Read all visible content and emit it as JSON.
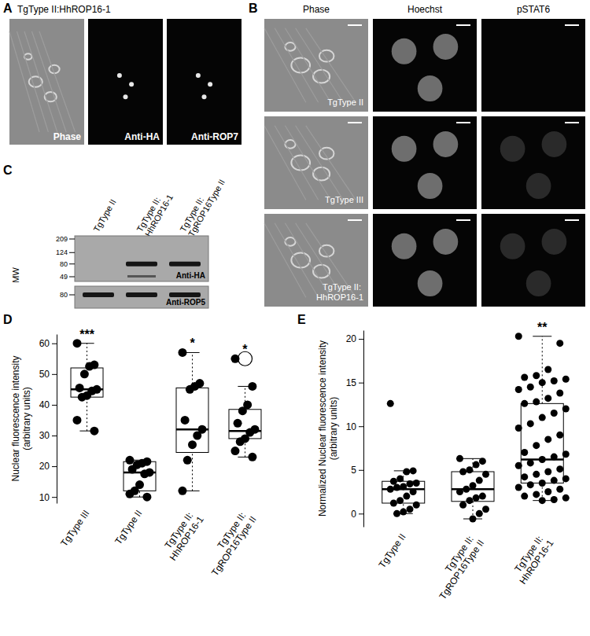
{
  "figure": {
    "A": {
      "label": "A",
      "title": "TgType II:HhROP16-1",
      "images": [
        "Phase",
        "Anti-HA",
        "Anti-ROP7"
      ]
    },
    "B": {
      "label": "B",
      "columns": [
        "Phase",
        "Hoechst",
        "pSTAT6"
      ],
      "rows": [
        "TgType II",
        "TgType III",
        "TgType II: HhROP16-1"
      ]
    },
    "C": {
      "label": "C",
      "lanes": [
        "TgType II",
        "TgType II: HhROP16-1",
        "TgType II: TgROP16Type II"
      ],
      "mw_label": "MW",
      "blots": [
        {
          "name": "Anti-HA",
          "markers": [
            209,
            124,
            80,
            49
          ]
        },
        {
          "name": "Anti-ROP5",
          "markers": [
            80
          ]
        }
      ]
    }
  },
  "chart_data": [
    {
      "type": "box",
      "title": "D",
      "ylabel": [
        "Nuclear fluorescence intensity",
        "(arbitrary units)"
      ],
      "categories": [
        "TgType III",
        "TgType II",
        "TgType II: HhROP16-1",
        "TgType II: TgROP16Type II"
      ],
      "points": [
        [
          60,
          53,
          52.5,
          50,
          45.5,
          45,
          44.5,
          43,
          42.5,
          35,
          31.5
        ],
        [
          22,
          21.5,
          21,
          20.5,
          19,
          18,
          17.5,
          14,
          12,
          11,
          10
        ],
        [
          57,
          47,
          46,
          45,
          35,
          32,
          30,
          27,
          22,
          12
        ],
        [
          55,
          46,
          40,
          38,
          34,
          32,
          31,
          29,
          28,
          25,
          23
        ]
      ],
      "q1": [
        42.5,
        12,
        24.5,
        29
      ],
      "median": [
        45,
        18,
        32,
        31.5
      ],
      "q3": [
        52,
        21.5,
        45.5,
        38.5
      ],
      "whisker_low": [
        31.5,
        10,
        12,
        23
      ],
      "whisker_high": [
        60,
        22,
        57,
        46
      ],
      "outliers": [
        [],
        [],
        [],
        [
          55
        ]
      ],
      "annotations": [
        "***",
        null,
        "*",
        "*"
      ],
      "ylim": [
        8,
        63
      ],
      "yticks": [
        10,
        20,
        30,
        40,
        50,
        60
      ],
      "grid": false
    },
    {
      "type": "box",
      "title": "E",
      "ylabel": [
        "Normalized Nuclear fluorescence intensity",
        "(arbitrary units)"
      ],
      "categories": [
        "TgType II",
        "TgType II: TgROP16Type II",
        "TgType II: HhROP16-1"
      ],
      "points": [
        [
          12.6,
          4.9,
          4.8,
          4,
          3.7,
          3.5,
          3.4,
          3.1,
          3,
          2.8,
          2.5,
          2,
          1.5,
          1.2,
          1,
          0.5,
          0.2,
          0
        ],
        [
          6.3,
          6,
          5.6,
          5,
          4.8,
          4.5,
          3.8,
          3.2,
          2.8,
          2.5,
          2,
          1.8,
          1.5,
          1,
          0.5,
          0,
          -0.6
        ],
        [
          20.3,
          19.5,
          16.5,
          15.8,
          15.6,
          15.4,
          15.2,
          15,
          14.5,
          14.2,
          13.8,
          13.2,
          12.8,
          12.6,
          12,
          11.5,
          11,
          10.3,
          9.8,
          9,
          8.5,
          7.8,
          7,
          6.8,
          6.5,
          6.2,
          5.8,
          5.5,
          5.1,
          4.8,
          4.5,
          4.2,
          4,
          3.8,
          3.5,
          3.3,
          3,
          2.8,
          2.5,
          2.2,
          2,
          1.8,
          1.6,
          1.5
        ]
      ],
      "q1": [
        1.2,
        1.4,
        3.5
      ],
      "median": [
        2.8,
        2.8,
        6.2
      ],
      "q3": [
        3.7,
        4.8,
        12.6
      ],
      "whisker_low": [
        0,
        -0.6,
        1.5
      ],
      "whisker_high": [
        4.9,
        6.3,
        20.3
      ],
      "annotations": [
        null,
        null,
        "**"
      ],
      "ylim": [
        -1.5,
        21
      ],
      "yticks": [
        0,
        5,
        10,
        15,
        20
      ],
      "grid": false
    }
  ]
}
